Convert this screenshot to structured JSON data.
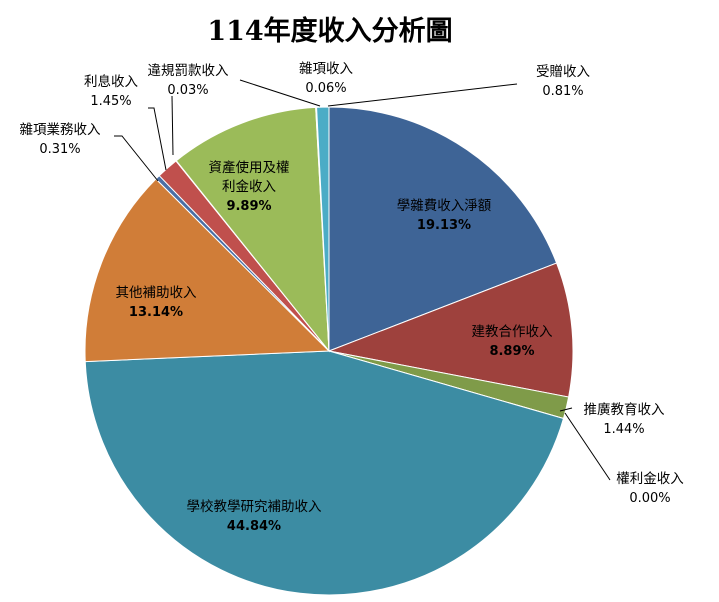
{
  "chart_data": {
    "type": "pie",
    "title": "114年度收入分析圖",
    "slices": [
      {
        "label": "學雜費收入淨額",
        "value": 19.13,
        "pct_text": "19.13%",
        "color": "#3E6496"
      },
      {
        "label": "建教合作收入",
        "value": 8.89,
        "pct_text": "8.89%",
        "color": "#9E413D"
      },
      {
        "label": "推廣教育收入",
        "value": 1.44,
        "pct_text": "1.44%",
        "color": "#7F9B49"
      },
      {
        "label": "權利金收入",
        "value": 0.0,
        "pct_text": "0.00%",
        "color": "#5E4A85"
      },
      {
        "label": "學校教學研究補助收入",
        "value": 44.84,
        "pct_text": "44.84%",
        "color": "#3C8CA3"
      },
      {
        "label": "其他補助收入",
        "value": 13.14,
        "pct_text": "13.14%",
        "color": "#D07D38"
      },
      {
        "label": "雜項業務收入",
        "value": 0.31,
        "pct_text": "0.31%",
        "color": "#4A6FA5"
      },
      {
        "label": "利息收入",
        "value": 1.45,
        "pct_text": "1.45%",
        "color": "#C0504D"
      },
      {
        "label": "違規罰款收入",
        "value": 0.03,
        "pct_text": "0.03%",
        "color": "#9BBB59"
      },
      {
        "label": "資產使用及權利金收入",
        "value": 9.89,
        "pct_text": "9.89%",
        "color": "#9BBB59"
      },
      {
        "label": "雜項收入",
        "value": 0.06,
        "pct_text": "0.06%",
        "color": "#8064A2"
      },
      {
        "label": "受贈收入",
        "value": 0.81,
        "pct_text": "0.81%",
        "color": "#4BACC6"
      }
    ]
  }
}
